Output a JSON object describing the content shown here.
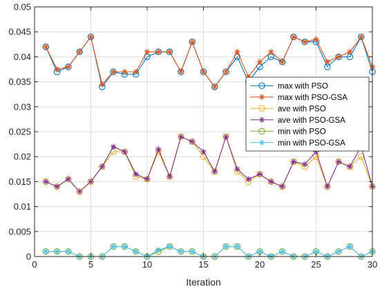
{
  "chart_data": {
    "type": "line",
    "xlabel": "Iteration",
    "ylabel": "",
    "xlim": [
      0,
      30
    ],
    "ylim": [
      0,
      0.05
    ],
    "xticks": [
      0,
      5,
      10,
      15,
      20,
      25,
      30
    ],
    "yticks": [
      0,
      0.005,
      0.01,
      0.015,
      0.02,
      0.025,
      0.03,
      0.035,
      0.04,
      0.045,
      0.05
    ],
    "grid": true,
    "legend_position": "right-middle",
    "x": [
      1,
      2,
      3,
      4,
      5,
      6,
      7,
      8,
      9,
      10,
      11,
      12,
      13,
      14,
      15,
      16,
      17,
      18,
      19,
      20,
      21,
      22,
      23,
      24,
      25,
      26,
      27,
      28,
      29,
      30
    ],
    "series": [
      {
        "name": "max with PSO",
        "color": "#0072BD",
        "marker": "circle",
        "values": [
          0.042,
          0.037,
          0.038,
          0.041,
          0.044,
          0.034,
          0.037,
          0.0365,
          0.0365,
          0.04,
          0.041,
          0.041,
          0.037,
          0.043,
          0.037,
          0.034,
          0.037,
          0.04,
          0.035,
          0.038,
          0.04,
          0.039,
          0.044,
          0.043,
          0.043,
          0.038,
          0.04,
          0.04,
          0.044,
          0.037
        ]
      },
      {
        "name": "max with PSO-GSA",
        "color": "#D95319",
        "marker": "asterisk",
        "values": [
          0.042,
          0.0375,
          0.038,
          0.041,
          0.044,
          0.0345,
          0.037,
          0.037,
          0.037,
          0.041,
          0.041,
          0.041,
          0.037,
          0.043,
          0.037,
          0.034,
          0.037,
          0.041,
          0.036,
          0.039,
          0.041,
          0.039,
          0.044,
          0.043,
          0.0435,
          0.039,
          0.04,
          0.041,
          0.044,
          0.038
        ]
      },
      {
        "name": "ave with PSO",
        "color": "#EDB120",
        "marker": "circle",
        "values": [
          0.015,
          0.014,
          0.0155,
          0.013,
          0.015,
          0.018,
          0.021,
          0.021,
          0.016,
          0.0155,
          0.021,
          0.016,
          0.024,
          0.023,
          0.02,
          0.017,
          0.024,
          0.017,
          0.015,
          0.0165,
          0.015,
          0.014,
          0.019,
          0.018,
          0.02,
          0.014,
          0.019,
          0.018,
          0.02,
          0.014
        ]
      },
      {
        "name": "ave with PSO-GSA",
        "color": "#7E2F8E",
        "marker": "asterisk",
        "values": [
          0.015,
          0.014,
          0.0155,
          0.013,
          0.015,
          0.018,
          0.022,
          0.021,
          0.0165,
          0.0155,
          0.0215,
          0.016,
          0.024,
          0.023,
          0.021,
          0.017,
          0.024,
          0.0175,
          0.0155,
          0.0165,
          0.015,
          0.014,
          0.019,
          0.0185,
          0.021,
          0.014,
          0.019,
          0.018,
          0.022,
          0.014
        ]
      },
      {
        "name": "min with PSO",
        "color": "#77AC30",
        "marker": "circle",
        "values": [
          0.001,
          0.001,
          0.001,
          0.0,
          0.0,
          0.0,
          0.002,
          0.002,
          0.001,
          0.0,
          0.001,
          0.002,
          0.001,
          0.001,
          0.0,
          0.0,
          0.002,
          0.002,
          0.0,
          0.001,
          0.0,
          0.001,
          0.0,
          0.0,
          0.001,
          0.0,
          0.001,
          0.002,
          0.0,
          0.001
        ]
      },
      {
        "name": "min with PSO-GSA",
        "color": "#4DBEEE",
        "marker": "asterisk",
        "values": [
          0.001,
          0.001,
          0.001,
          0.0,
          0.0,
          0.0,
          0.002,
          0.002,
          0.001,
          0.0,
          0.0013,
          0.002,
          0.001,
          0.001,
          0.0,
          0.0,
          0.002,
          0.002,
          0.0,
          0.001,
          0.0,
          0.001,
          0.0,
          0.0,
          0.001,
          0.0,
          0.001,
          0.002,
          0.0,
          0.001
        ]
      }
    ]
  }
}
